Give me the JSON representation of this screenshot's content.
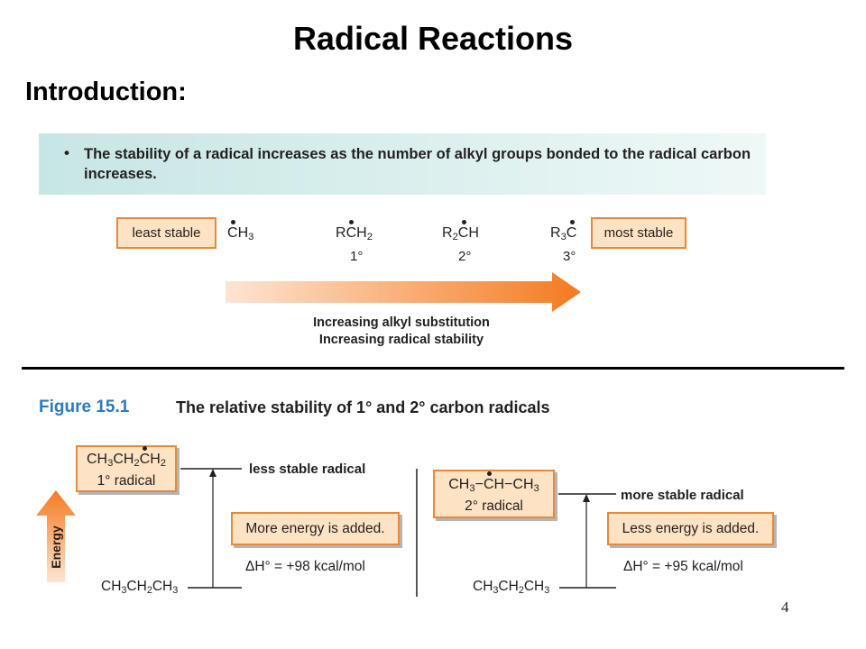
{
  "title": "Radical Reactions",
  "subtitle": "Introduction:",
  "bullet": {
    "symbol": "•",
    "text": "The stability of a radical increases as the number of alkyl groups bonded to the radical carbon increases."
  },
  "stability_scale": {
    "least_label": "least stable",
    "most_label": "most stable",
    "radicals": [
      {
        "formula": "CH3",
        "degree": ""
      },
      {
        "formula": "RCH2",
        "degree": "1°"
      },
      {
        "formula": "R2CH",
        "degree": "2°"
      },
      {
        "formula": "R3C",
        "degree": "3°"
      }
    ],
    "arrow_caption_line1": "Increasing alkyl substitution",
    "arrow_caption_line2": "Increasing radical stability"
  },
  "figure": {
    "label": "Figure 15.1",
    "caption": "The relative stability of 1° and 2° carbon radicals",
    "energy_axis_label": "Energy",
    "left": {
      "radical_formula": "CH3CH2CH2",
      "radical_type": "1° radical",
      "level_label": "less stable radical",
      "energy_note": "More energy is added.",
      "delta_h": "ΔH° = +98 kcal/mol",
      "alkane": "CH3CH2CH3"
    },
    "right": {
      "radical_formula": "CH3−CH−CH3",
      "radical_type": "2° radical",
      "level_label": "more stable radical",
      "energy_note": "Less energy is added.",
      "delta_h": "ΔH° = +95 kcal/mol",
      "alkane": "CH3CH2CH3"
    }
  },
  "page_number": "4",
  "colors": {
    "box_fill": "#fde3c4",
    "box_border": "#e8893a",
    "bullet_bg_start": "#c6e6e4",
    "bullet_bg_end": "#eef8f7",
    "figure_label": "#2d7ab8",
    "arrow_start": "#fde5d2",
    "arrow_end": "#f47a20"
  }
}
